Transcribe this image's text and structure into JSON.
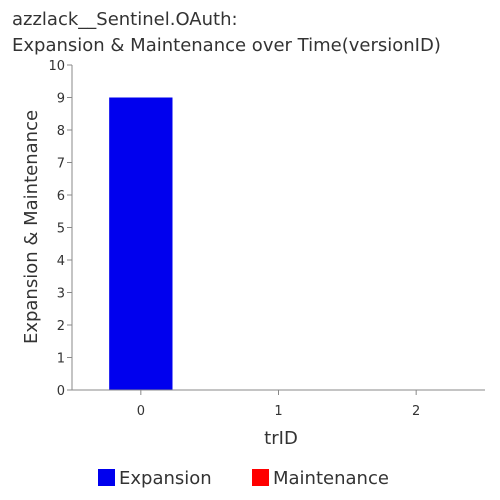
{
  "chart_data": {
    "type": "bar",
    "title_line1": "azzlack__Sentinel.OAuth:",
    "title_line2": "Expansion & Maintenance over Time(versionID)",
    "xlabel": "trID",
    "ylabel": "Expansion & Maintenance",
    "x_ticks": [
      "0",
      "1",
      "2"
    ],
    "y_ticks": [
      "0",
      "1",
      "2",
      "3",
      "4",
      "5",
      "6",
      "7",
      "8",
      "9",
      "10"
    ],
    "xlim": [
      -0.5,
      2.5
    ],
    "ylim": [
      0,
      10
    ],
    "grid": false,
    "legend_position": "bottom",
    "series": [
      {
        "name": "Expansion",
        "color": "#0000ee",
        "points": [
          {
            "x": 0,
            "y": 9
          }
        ]
      },
      {
        "name": "Maintenance",
        "color": "#ff0000",
        "points": []
      }
    ]
  }
}
